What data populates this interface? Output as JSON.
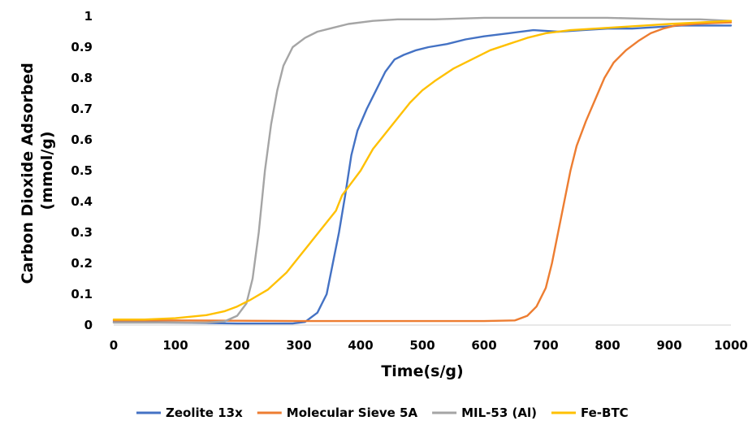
{
  "chart_data": {
    "type": "line",
    "xlabel": "Time(s/g)",
    "ylabel": "Carbon Dioxide Adsorbed (mmol/g)",
    "ylabel_lines": [
      "Carbon Dioxide Adsorbed",
      "(mmol/g)"
    ],
    "xlim": [
      0,
      1000
    ],
    "ylim": [
      0,
      1
    ],
    "xticks": [
      0,
      100,
      200,
      300,
      400,
      500,
      600,
      700,
      800,
      900,
      1000
    ],
    "yticks": [
      0,
      0.1,
      0.2,
      0.3,
      0.4,
      0.5,
      0.6,
      0.7,
      0.8,
      0.9,
      1
    ],
    "ytick_labels": [
      "0",
      "0.1",
      "0.2",
      "0.3",
      "0.4",
      "0.5",
      "0.6",
      "0.7",
      "0.8",
      "0.9",
      "1"
    ],
    "grid": false,
    "legend": "bottom",
    "series": [
      {
        "name": "Zeolite 13x",
        "color": "#4472C4",
        "points": [
          [
            0,
            0.01
          ],
          [
            100,
            0.008
          ],
          [
            200,
            0.005
          ],
          [
            290,
            0.005
          ],
          [
            310,
            0.01
          ],
          [
            330,
            0.04
          ],
          [
            345,
            0.1
          ],
          [
            355,
            0.2
          ],
          [
            365,
            0.3
          ],
          [
            375,
            0.42
          ],
          [
            385,
            0.55
          ],
          [
            395,
            0.63
          ],
          [
            410,
            0.7
          ],
          [
            425,
            0.76
          ],
          [
            440,
            0.82
          ],
          [
            455,
            0.86
          ],
          [
            470,
            0.875
          ],
          [
            490,
            0.89
          ],
          [
            510,
            0.9
          ],
          [
            540,
            0.91
          ],
          [
            570,
            0.925
          ],
          [
            600,
            0.935
          ],
          [
            640,
            0.945
          ],
          [
            680,
            0.955
          ],
          [
            720,
            0.95
          ],
          [
            760,
            0.955
          ],
          [
            800,
            0.96
          ],
          [
            840,
            0.96
          ],
          [
            880,
            0.965
          ],
          [
            920,
            0.97
          ],
          [
            960,
            0.97
          ],
          [
            1000,
            0.97
          ]
        ]
      },
      {
        "name": "Molecular Sieve 5A",
        "color": "#ED7D31",
        "points": [
          [
            0,
            0.015
          ],
          [
            100,
            0.015
          ],
          [
            200,
            0.014
          ],
          [
            300,
            0.013
          ],
          [
            400,
            0.013
          ],
          [
            500,
            0.013
          ],
          [
            600,
            0.013
          ],
          [
            650,
            0.015
          ],
          [
            670,
            0.03
          ],
          [
            685,
            0.06
          ],
          [
            700,
            0.12
          ],
          [
            710,
            0.2
          ],
          [
            720,
            0.3
          ],
          [
            730,
            0.4
          ],
          [
            740,
            0.5
          ],
          [
            750,
            0.58
          ],
          [
            765,
            0.66
          ],
          [
            780,
            0.73
          ],
          [
            795,
            0.8
          ],
          [
            810,
            0.85
          ],
          [
            830,
            0.89
          ],
          [
            850,
            0.92
          ],
          [
            870,
            0.945
          ],
          [
            890,
            0.96
          ],
          [
            910,
            0.97
          ],
          [
            940,
            0.975
          ],
          [
            970,
            0.978
          ],
          [
            1000,
            0.98
          ]
        ]
      },
      {
        "name": "MIL-53 (Al)",
        "color": "#A5A5A5",
        "points": [
          [
            0,
            0.008
          ],
          [
            150,
            0.008
          ],
          [
            180,
            0.012
          ],
          [
            200,
            0.03
          ],
          [
            215,
            0.07
          ],
          [
            225,
            0.15
          ],
          [
            235,
            0.3
          ],
          [
            245,
            0.5
          ],
          [
            255,
            0.65
          ],
          [
            265,
            0.76
          ],
          [
            275,
            0.84
          ],
          [
            290,
            0.9
          ],
          [
            310,
            0.93
          ],
          [
            330,
            0.95
          ],
          [
            350,
            0.96
          ],
          [
            380,
            0.975
          ],
          [
            420,
            0.985
          ],
          [
            460,
            0.99
          ],
          [
            520,
            0.99
          ],
          [
            600,
            0.995
          ],
          [
            700,
            0.995
          ],
          [
            800,
            0.995
          ],
          [
            900,
            0.99
          ],
          [
            950,
            0.99
          ],
          [
            1000,
            0.985
          ]
        ]
      },
      {
        "name": "Fe-BTC",
        "color": "#FFC000",
        "points": [
          [
            0,
            0.018
          ],
          [
            50,
            0.018
          ],
          [
            100,
            0.022
          ],
          [
            150,
            0.032
          ],
          [
            180,
            0.045
          ],
          [
            200,
            0.06
          ],
          [
            220,
            0.08
          ],
          [
            250,
            0.115
          ],
          [
            280,
            0.17
          ],
          [
            300,
            0.22
          ],
          [
            320,
            0.27
          ],
          [
            340,
            0.32
          ],
          [
            360,
            0.37
          ],
          [
            370,
            0.42
          ],
          [
            385,
            0.46
          ],
          [
            400,
            0.5
          ],
          [
            420,
            0.57
          ],
          [
            440,
            0.62
          ],
          [
            460,
            0.67
          ],
          [
            480,
            0.72
          ],
          [
            500,
            0.76
          ],
          [
            520,
            0.79
          ],
          [
            550,
            0.83
          ],
          [
            580,
            0.86
          ],
          [
            610,
            0.89
          ],
          [
            640,
            0.91
          ],
          [
            670,
            0.93
          ],
          [
            700,
            0.945
          ],
          [
            740,
            0.955
          ],
          [
            780,
            0.96
          ],
          [
            820,
            0.965
          ],
          [
            860,
            0.97
          ],
          [
            900,
            0.975
          ],
          [
            950,
            0.98
          ],
          [
            1000,
            0.985
          ]
        ]
      }
    ]
  }
}
